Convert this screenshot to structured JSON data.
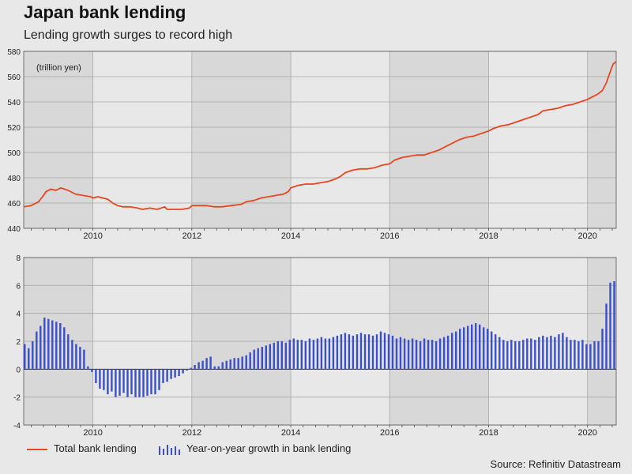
{
  "title": "Japan bank lending",
  "subtitle": "Lending growth surges to record high",
  "source": "Source: Refinitiv Datastream",
  "legend": {
    "line_label": "Total bank lending",
    "bar_label": "Year-on-year growth in bank lending"
  },
  "colors": {
    "line": "#e8461e",
    "bars": "#3a4fc8",
    "band_dark": "#d8d8d8",
    "band_light": "#e8e8e8"
  },
  "chart_data": [
    {
      "type": "line",
      "title": "",
      "unit_label": "(trillion yen)",
      "series": [
        {
          "name": "Total bank lending"
        }
      ],
      "x_ticks": [
        "2010",
        "2012",
        "2014",
        "2016",
        "2018",
        "2020"
      ],
      "y_ticks": [
        "440",
        "460",
        "480",
        "500",
        "520",
        "540",
        "560",
        "580"
      ],
      "ylim": [
        440,
        580
      ],
      "xlim": [
        2008.6,
        2020.58
      ],
      "grid": true,
      "points": [
        [
          2008.6,
          457
        ],
        [
          2008.75,
          458
        ],
        [
          2008.9,
          461
        ],
        [
          2009.0,
          466
        ],
        [
          2009.05,
          469
        ],
        [
          2009.15,
          471
        ],
        [
          2009.25,
          470
        ],
        [
          2009.35,
          472
        ],
        [
          2009.5,
          470
        ],
        [
          2009.65,
          467
        ],
        [
          2009.8,
          466
        ],
        [
          2009.95,
          465
        ],
        [
          2010.0,
          464
        ],
        [
          2010.1,
          465
        ],
        [
          2010.2,
          464
        ],
        [
          2010.3,
          463
        ],
        [
          2010.4,
          460
        ],
        [
          2010.5,
          458
        ],
        [
          2010.6,
          457
        ],
        [
          2010.75,
          457
        ],
        [
          2010.9,
          456
        ],
        [
          2011.0,
          455
        ],
        [
          2011.15,
          456
        ],
        [
          2011.3,
          455
        ],
        [
          2011.45,
          457
        ],
        [
          2011.5,
          455
        ],
        [
          2011.65,
          455
        ],
        [
          2011.8,
          455
        ],
        [
          2011.95,
          456
        ],
        [
          2012.0,
          458
        ],
        [
          2012.15,
          458
        ],
        [
          2012.3,
          458
        ],
        [
          2012.45,
          457
        ],
        [
          2012.6,
          457
        ],
        [
          2012.8,
          458
        ],
        [
          2013.0,
          459
        ],
        [
          2013.1,
          461
        ],
        [
          2013.25,
          462
        ],
        [
          2013.4,
          464
        ],
        [
          2013.55,
          465
        ],
        [
          2013.7,
          466
        ],
        [
          2013.85,
          467
        ],
        [
          2013.95,
          469
        ],
        [
          2014.0,
          472
        ],
        [
          2014.15,
          474
        ],
        [
          2014.3,
          475
        ],
        [
          2014.45,
          475
        ],
        [
          2014.6,
          476
        ],
        [
          2014.75,
          477
        ],
        [
          2014.9,
          479
        ],
        [
          2015.0,
          481
        ],
        [
          2015.1,
          484
        ],
        [
          2015.25,
          486
        ],
        [
          2015.4,
          487
        ],
        [
          2015.55,
          487
        ],
        [
          2015.7,
          488
        ],
        [
          2015.85,
          490
        ],
        [
          2016.0,
          491
        ],
        [
          2016.1,
          494
        ],
        [
          2016.25,
          496
        ],
        [
          2016.4,
          497
        ],
        [
          2016.55,
          498
        ],
        [
          2016.7,
          498
        ],
        [
          2016.85,
          500
        ],
        [
          2017.0,
          502
        ],
        [
          2017.1,
          504
        ],
        [
          2017.25,
          507
        ],
        [
          2017.4,
          510
        ],
        [
          2017.55,
          512
        ],
        [
          2017.7,
          513
        ],
        [
          2017.85,
          515
        ],
        [
          2018.0,
          517
        ],
        [
          2018.1,
          519
        ],
        [
          2018.25,
          521
        ],
        [
          2018.4,
          522
        ],
        [
          2018.55,
          524
        ],
        [
          2018.7,
          526
        ],
        [
          2018.85,
          528
        ],
        [
          2019.0,
          530
        ],
        [
          2019.1,
          533
        ],
        [
          2019.25,
          534
        ],
        [
          2019.4,
          535
        ],
        [
          2019.55,
          537
        ],
        [
          2019.7,
          538
        ],
        [
          2019.85,
          540
        ],
        [
          2020.0,
          542
        ],
        [
          2020.1,
          544
        ],
        [
          2020.2,
          546
        ],
        [
          2020.3,
          549
        ],
        [
          2020.38,
          555
        ],
        [
          2020.45,
          563
        ],
        [
          2020.52,
          570
        ],
        [
          2020.58,
          572
        ]
      ]
    },
    {
      "type": "bar",
      "title": "",
      "series": [
        {
          "name": "Year-on-year growth in bank lending"
        }
      ],
      "x_ticks": [
        "2010",
        "2012",
        "2014",
        "2016",
        "2018",
        "2020"
      ],
      "y_ticks": [
        "-4",
        "-2",
        "0",
        "2",
        "4",
        "6",
        "8"
      ],
      "ylim": [
        -4,
        8
      ],
      "xlim": [
        2008.6,
        2020.58
      ],
      "grid": true,
      "points": [
        [
          2008.62,
          1.8
        ],
        [
          2008.7,
          1.5
        ],
        [
          2008.78,
          2.0
        ],
        [
          2008.86,
          2.7
        ],
        [
          2008.94,
          3.1
        ],
        [
          2009.02,
          3.7
        ],
        [
          2009.1,
          3.6
        ],
        [
          2009.18,
          3.5
        ],
        [
          2009.26,
          3.4
        ],
        [
          2009.34,
          3.3
        ],
        [
          2009.42,
          3.0
        ],
        [
          2009.5,
          2.5
        ],
        [
          2009.58,
          2.1
        ],
        [
          2009.66,
          1.8
        ],
        [
          2009.74,
          1.6
        ],
        [
          2009.82,
          1.4
        ],
        [
          2009.9,
          0.2
        ],
        [
          2009.98,
          -0.2
        ],
        [
          2010.06,
          -1.0
        ],
        [
          2010.14,
          -1.4
        ],
        [
          2010.22,
          -1.5
        ],
        [
          2010.3,
          -1.8
        ],
        [
          2010.38,
          -1.6
        ],
        [
          2010.46,
          -2.0
        ],
        [
          2010.54,
          -1.9
        ],
        [
          2010.62,
          -1.7
        ],
        [
          2010.7,
          -2.0
        ],
        [
          2010.78,
          -1.8
        ],
        [
          2010.86,
          -2.0
        ],
        [
          2010.94,
          -2.0
        ],
        [
          2011.02,
          -2.0
        ],
        [
          2011.1,
          -1.9
        ],
        [
          2011.18,
          -1.8
        ],
        [
          2011.26,
          -1.8
        ],
        [
          2011.34,
          -1.5
        ],
        [
          2011.42,
          -1.0
        ],
        [
          2011.5,
          -0.9
        ],
        [
          2011.58,
          -0.7
        ],
        [
          2011.66,
          -0.6
        ],
        [
          2011.74,
          -0.5
        ],
        [
          2011.82,
          -0.3
        ],
        [
          2011.9,
          -0.1
        ],
        [
          2011.98,
          0.1
        ],
        [
          2012.06,
          0.3
        ],
        [
          2012.14,
          0.5
        ],
        [
          2012.22,
          0.6
        ],
        [
          2012.3,
          0.8
        ],
        [
          2012.38,
          0.9
        ],
        [
          2012.46,
          0.2
        ],
        [
          2012.54,
          0.2
        ],
        [
          2012.62,
          0.5
        ],
        [
          2012.7,
          0.6
        ],
        [
          2012.78,
          0.7
        ],
        [
          2012.86,
          0.8
        ],
        [
          2012.94,
          0.8
        ],
        [
          2013.02,
          0.9
        ],
        [
          2013.1,
          1.0
        ],
        [
          2013.18,
          1.2
        ],
        [
          2013.26,
          1.4
        ],
        [
          2013.34,
          1.5
        ],
        [
          2013.42,
          1.6
        ],
        [
          2013.5,
          1.7
        ],
        [
          2013.58,
          1.8
        ],
        [
          2013.66,
          1.9
        ],
        [
          2013.74,
          2.0
        ],
        [
          2013.82,
          2.0
        ],
        [
          2013.9,
          1.9
        ],
        [
          2013.98,
          2.1
        ],
        [
          2014.06,
          2.2
        ],
        [
          2014.14,
          2.1
        ],
        [
          2014.22,
          2.1
        ],
        [
          2014.3,
          2.0
        ],
        [
          2014.38,
          2.2
        ],
        [
          2014.46,
          2.1
        ],
        [
          2014.54,
          2.2
        ],
        [
          2014.62,
          2.3
        ],
        [
          2014.7,
          2.2
        ],
        [
          2014.78,
          2.2
        ],
        [
          2014.86,
          2.3
        ],
        [
          2014.94,
          2.4
        ],
        [
          2015.02,
          2.5
        ],
        [
          2015.1,
          2.6
        ],
        [
          2015.18,
          2.5
        ],
        [
          2015.26,
          2.4
        ],
        [
          2015.34,
          2.5
        ],
        [
          2015.42,
          2.6
        ],
        [
          2015.5,
          2.5
        ],
        [
          2015.58,
          2.5
        ],
        [
          2015.66,
          2.4
        ],
        [
          2015.74,
          2.5
        ],
        [
          2015.82,
          2.7
        ],
        [
          2015.9,
          2.6
        ],
        [
          2015.98,
          2.5
        ],
        [
          2016.06,
          2.4
        ],
        [
          2016.14,
          2.2
        ],
        [
          2016.22,
          2.3
        ],
        [
          2016.3,
          2.2
        ],
        [
          2016.38,
          2.1
        ],
        [
          2016.46,
          2.2
        ],
        [
          2016.54,
          2.1
        ],
        [
          2016.62,
          2.0
        ],
        [
          2016.7,
          2.2
        ],
        [
          2016.78,
          2.1
        ],
        [
          2016.86,
          2.1
        ],
        [
          2016.94,
          2.0
        ],
        [
          2017.02,
          2.2
        ],
        [
          2017.1,
          2.3
        ],
        [
          2017.18,
          2.4
        ],
        [
          2017.26,
          2.6
        ],
        [
          2017.34,
          2.7
        ],
        [
          2017.42,
          2.9
        ],
        [
          2017.5,
          3.0
        ],
        [
          2017.58,
          3.1
        ],
        [
          2017.66,
          3.2
        ],
        [
          2017.74,
          3.3
        ],
        [
          2017.82,
          3.2
        ],
        [
          2017.9,
          3.0
        ],
        [
          2017.98,
          2.9
        ],
        [
          2018.06,
          2.7
        ],
        [
          2018.14,
          2.5
        ],
        [
          2018.22,
          2.3
        ],
        [
          2018.3,
          2.1
        ],
        [
          2018.38,
          2.0
        ],
        [
          2018.46,
          2.1
        ],
        [
          2018.54,
          2.0
        ],
        [
          2018.62,
          2.0
        ],
        [
          2018.7,
          2.1
        ],
        [
          2018.78,
          2.2
        ],
        [
          2018.86,
          2.2
        ],
        [
          2018.94,
          2.1
        ],
        [
          2019.02,
          2.3
        ],
        [
          2019.1,
          2.4
        ],
        [
          2019.18,
          2.3
        ],
        [
          2019.26,
          2.4
        ],
        [
          2019.34,
          2.3
        ],
        [
          2019.42,
          2.5
        ],
        [
          2019.5,
          2.6
        ],
        [
          2019.58,
          2.3
        ],
        [
          2019.66,
          2.1
        ],
        [
          2019.74,
          2.1
        ],
        [
          2019.82,
          2.0
        ],
        [
          2019.9,
          2.1
        ],
        [
          2019.98,
          1.8
        ],
        [
          2020.06,
          1.8
        ],
        [
          2020.14,
          2.0
        ],
        [
          2020.22,
          2.0
        ],
        [
          2020.3,
          2.9
        ],
        [
          2020.38,
          4.7
        ],
        [
          2020.46,
          6.2
        ],
        [
          2020.54,
          6.3
        ]
      ]
    }
  ]
}
